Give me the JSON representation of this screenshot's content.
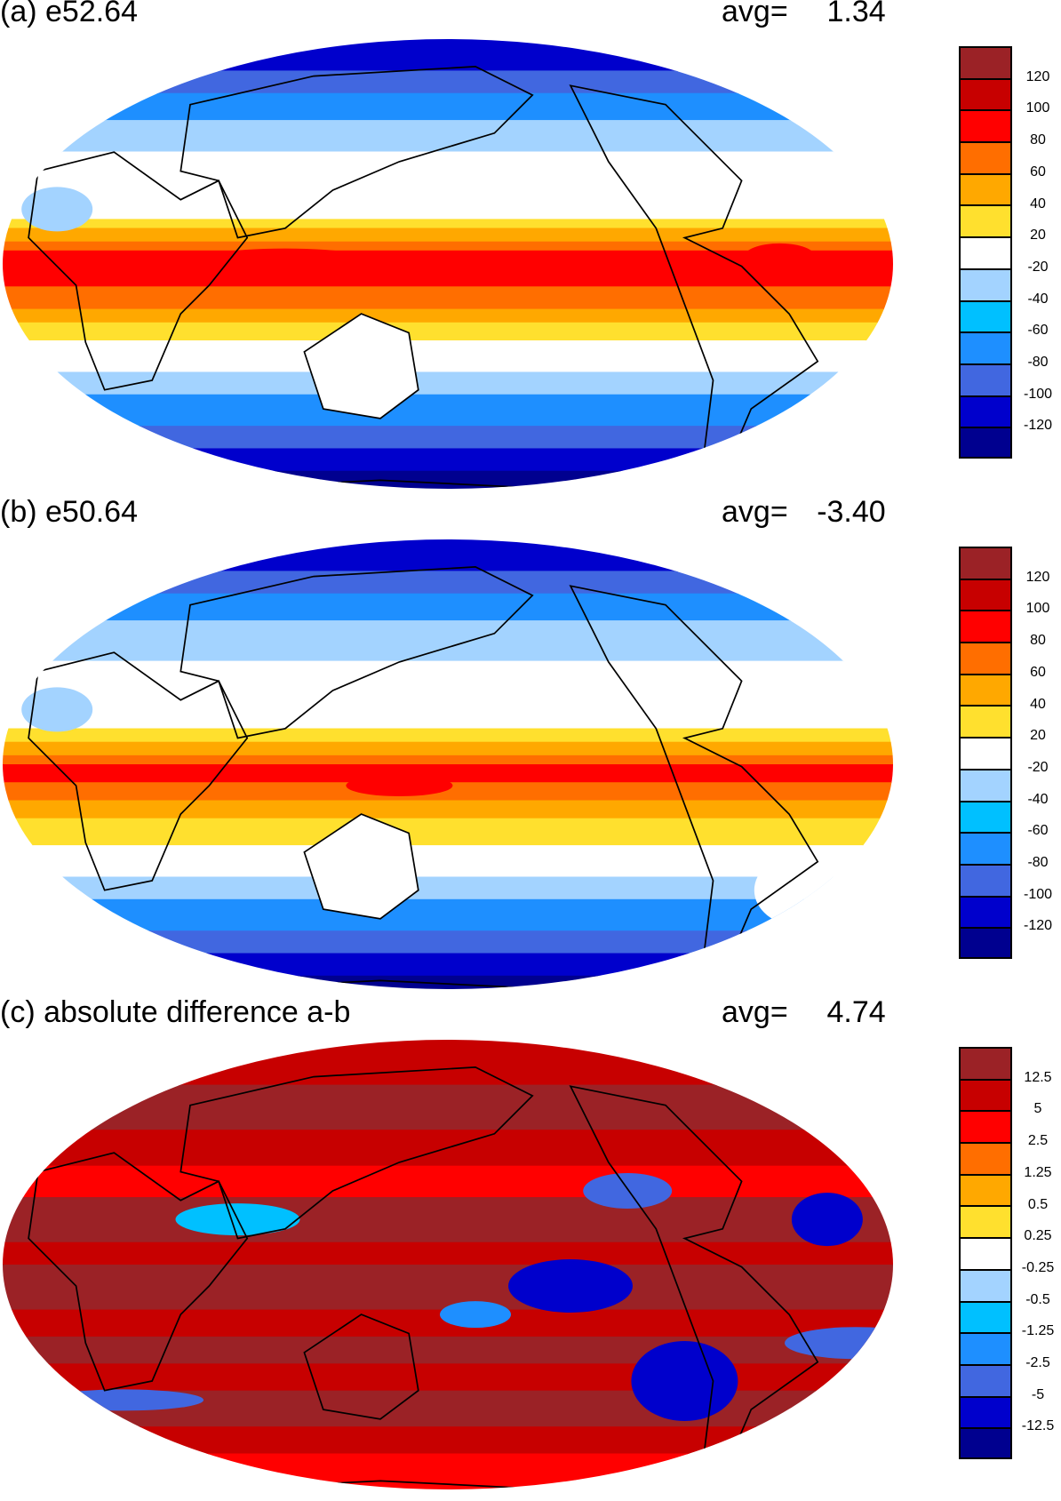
{
  "palette": [
    "#9b2226",
    "#c70000",
    "#ff0000",
    "#ff6e00",
    "#ffa800",
    "#ffe02e",
    "#ffffff",
    "#a3d3ff",
    "#00c0ff",
    "#1e8fff",
    "#4167e0",
    "#0000cc",
    "#00008f"
  ],
  "panels": [
    {
      "title": "(a) e52.64",
      "avg_label": "avg=",
      "avg_value": "1.34",
      "colorbar_labels": [
        "120",
        "100",
        "80",
        "60",
        "40",
        "20",
        "-20",
        "-40",
        "-60",
        "-80",
        "-100",
        "-120"
      ]
    },
    {
      "title": "(b) e50.64",
      "avg_label": "avg=",
      "avg_value": "-3.40",
      "colorbar_labels": [
        "120",
        "100",
        "80",
        "60",
        "40",
        "20",
        "-20",
        "-40",
        "-60",
        "-80",
        "-100",
        "-120"
      ]
    },
    {
      "title": "(c) absolute difference a-b",
      "avg_label": "avg=",
      "avg_value": "4.74",
      "colorbar_labels": [
        "12.5",
        "5",
        "2.5",
        "1.25",
        "0.5",
        "0.25",
        "-0.25",
        "-0.5",
        "-1.25",
        "-2.5",
        "-5",
        "-12.5"
      ]
    }
  ]
}
